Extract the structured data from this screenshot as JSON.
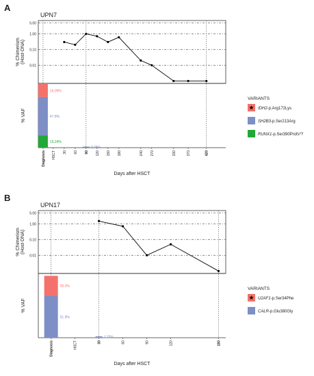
{
  "chart_data": [
    {
      "type": "line",
      "panel": "A",
      "title": "UPN7",
      "ylabel": [
        "% Chimerism",
        "(Host-DNA)"
      ],
      "xlabel": "Days after HSCT",
      "x": [
        30,
        60,
        90,
        120,
        150,
        180,
        240,
        270,
        330,
        370,
        420
      ],
      "values": [
        0.3,
        0.2,
        1.0,
        0.7,
        0.3,
        0.6,
        0.02,
        0.01,
        0.001,
        0.001,
        0.001
      ],
      "color": "#000000",
      "yscale": "log",
      "ylim": [
        0.0007,
        7
      ],
      "yticks": [
        {
          "value": 5,
          "label": "5.00"
        },
        {
          "value": 1,
          "label": "1.00"
        },
        {
          "value": 0.1,
          "label": "0.10"
        },
        {
          "value": 0.01,
          "label": "0.01"
        }
      ],
      "xlim": [
        -41,
        473
      ],
      "xticks": [
        {
          "value": -28,
          "label": "Diagnosis"
        },
        {
          "value": 0,
          "label": "HSCT"
        },
        30,
        60,
        90,
        120,
        150,
        180,
        240,
        270,
        330,
        370,
        420
      ],
      "reference_x": [
        -28,
        90,
        420
      ],
      "vaf_ylabel": "% VAF",
      "vaf_ylim": [
        0,
        80
      ],
      "legend_title": "VARIANTS",
      "vaf_series": [
        {
          "gene": "IDH2",
          "change": "-p.Arg172Lys",
          "marker": "star",
          "color": "#f4726b",
          "x": [
            -28
          ],
          "values": [
            16.09
          ],
          "value_labels": [
            "16.09%"
          ]
        },
        {
          "gene": "SH2B3",
          "change": "-p.Ser213Arg",
          "color": "#7d8fc6",
          "x": [
            -28,
            90
          ],
          "values": [
            47.8,
            0.75
          ],
          "value_labels": [
            "47.8%",
            "0.75%"
          ]
        },
        {
          "gene": "RUNX1",
          "change": "-p.Ser390Profs*?",
          "color": "#22a838",
          "x": [
            -28
          ],
          "values": [
            15.24
          ],
          "value_labels": [
            "15.24%"
          ]
        }
      ]
    },
    {
      "type": "line",
      "panel": "B",
      "title": "UPN17",
      "ylabel": [
        "% Chimerism",
        "(Host-DNA)"
      ],
      "xlabel": "Days after HSCT",
      "x": [
        30,
        60,
        90,
        120,
        180
      ],
      "values": [
        1.5,
        0.7,
        0.01,
        0.05,
        0.001
      ],
      "color": "#000000",
      "yscale": "log",
      "ylim": [
        0.0007,
        7
      ],
      "yticks": [
        {
          "value": 5,
          "label": "5.00"
        },
        {
          "value": 1,
          "label": "1.00"
        },
        {
          "value": 0.1,
          "label": "0.10"
        },
        {
          "value": 0.01,
          "label": "0.01"
        }
      ],
      "xlim": [
        -46,
        189
      ],
      "xticks": [
        {
          "value": -30,
          "label": "Diagnosis"
        },
        {
          "value": 0,
          "label": "HSCT"
        },
        30,
        60,
        90,
        120,
        180
      ],
      "reference_x": [
        -30,
        30,
        180
      ],
      "vaf_ylabel": "% VAF",
      "vaf_ylim": [
        0,
        80
      ],
      "legend_title": "VARIANTS",
      "vaf_series": [
        {
          "gene": "U2AF1",
          "change": "-p.Ser34Phe",
          "marker": "star",
          "color": "#f4726b",
          "x": [
            -30
          ],
          "values": [
            25.2
          ],
          "value_labels": [
            "25.2%"
          ]
        },
        {
          "gene": "CALR",
          "change": "-p.Glu380Gly",
          "color": "#7d8fc6",
          "x": [
            -30,
            30
          ],
          "values": [
            51.9,
            1.22
          ],
          "value_labels": [
            "51.9%",
            "1.22%"
          ]
        }
      ]
    }
  ]
}
